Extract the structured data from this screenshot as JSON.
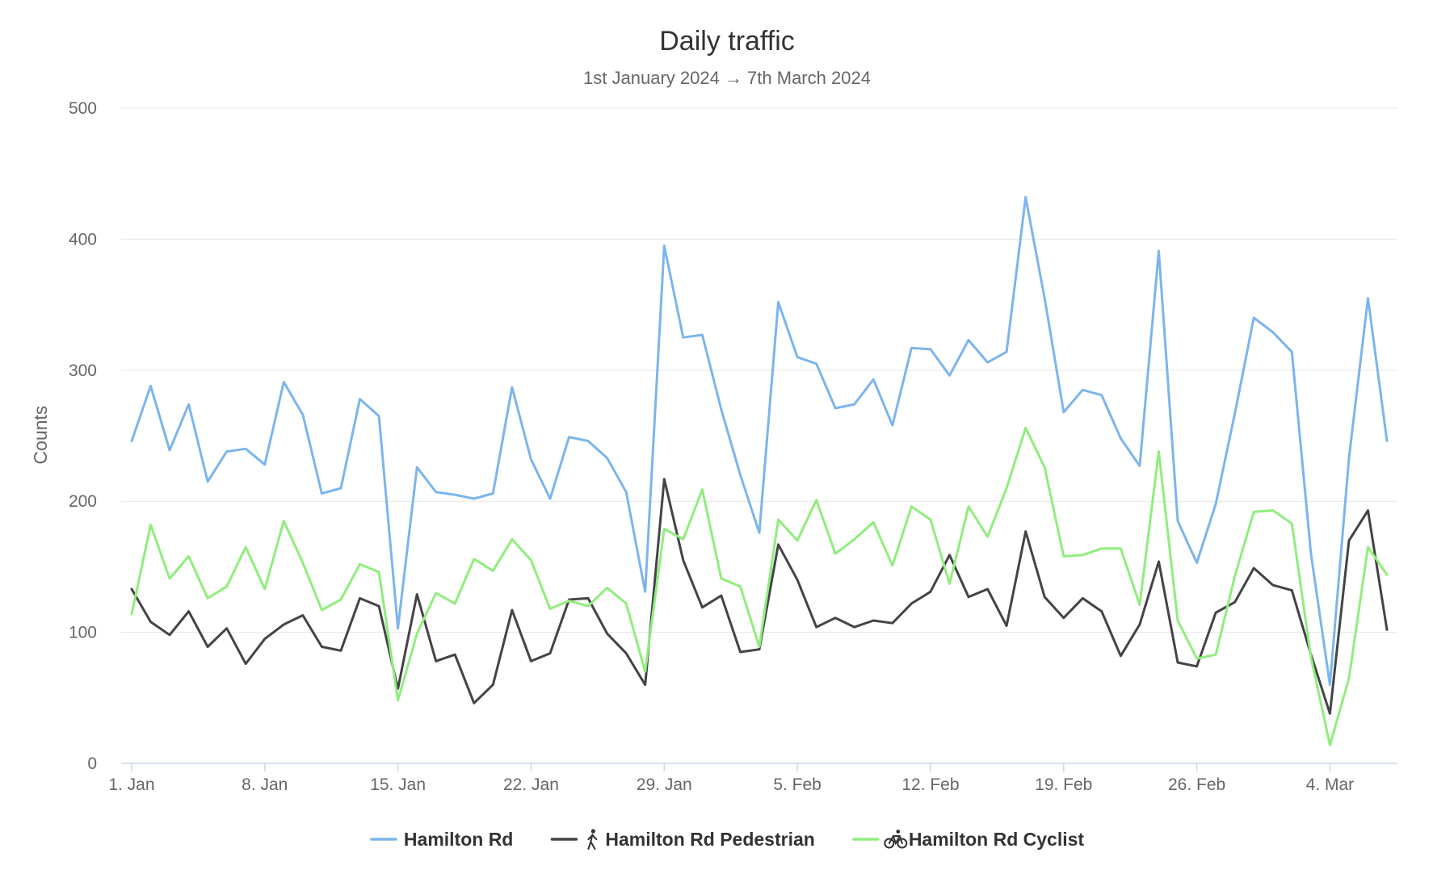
{
  "chart_data": {
    "type": "line",
    "title": "Daily traffic",
    "subtitle": "1st January 2024 → 7th March 2024",
    "ylabel": "Counts",
    "xlabel": "",
    "ylim": [
      0,
      500
    ],
    "yticks": [
      0,
      100,
      200,
      300,
      400,
      500
    ],
    "grid": true,
    "legend": "bottom-center",
    "x_start": "2024-01-01",
    "x_end": "2024-03-07",
    "x_ticks": [
      {
        "date": "2024-01-01",
        "label": "1. Jan"
      },
      {
        "date": "2024-01-08",
        "label": "8. Jan"
      },
      {
        "date": "2024-01-15",
        "label": "15. Jan"
      },
      {
        "date": "2024-01-22",
        "label": "22. Jan"
      },
      {
        "date": "2024-01-29",
        "label": "29. Jan"
      },
      {
        "date": "2024-02-05",
        "label": "5. Feb"
      },
      {
        "date": "2024-02-12",
        "label": "12. Feb"
      },
      {
        "date": "2024-02-19",
        "label": "19. Feb"
      },
      {
        "date": "2024-02-26",
        "label": "26. Feb"
      },
      {
        "date": "2024-03-04",
        "label": "4. Mar"
      }
    ],
    "series": [
      {
        "name": "Hamilton Rd",
        "color": "#7cb5ec",
        "icon": "",
        "values": [
          246,
          288,
          239,
          274,
          215,
          238,
          240,
          228,
          291,
          266,
          206,
          210,
          278,
          265,
          103,
          226,
          207,
          205,
          202,
          206,
          287,
          232,
          202,
          249,
          246,
          233,
          207,
          131,
          395,
          325,
          327,
          270,
          220,
          176,
          352,
          310,
          305,
          271,
          274,
          293,
          258,
          317,
          316,
          296,
          323,
          306,
          314,
          432,
          355,
          268,
          285,
          281,
          248,
          227,
          391,
          185,
          153,
          198,
          267,
          340,
          329,
          314,
          160,
          60,
          233,
          355,
          246
        ]
      },
      {
        "name": "Hamilton Rd Pedestrian",
        "color": "#434348",
        "icon": "pedestrian-icon",
        "values": [
          133,
          108,
          98,
          116,
          89,
          103,
          76,
          95,
          106,
          113,
          89,
          86,
          126,
          120,
          57,
          129,
          78,
          83,
          46,
          60,
          117,
          78,
          84,
          125,
          126,
          99,
          84,
          60,
          217,
          155,
          119,
          128,
          85,
          87,
          167,
          140,
          104,
          111,
          104,
          109,
          107,
          122,
          131,
          159,
          127,
          133,
          105,
          177,
          127,
          111,
          126,
          116,
          82,
          106,
          154,
          77,
          74,
          115,
          123,
          149,
          136,
          132,
          83,
          38,
          170,
          193,
          102
        ]
      },
      {
        "name": "Hamilton Rd Cyclist",
        "color": "#90ed7d",
        "icon": "bicycle-icon",
        "values": [
          114,
          182,
          141,
          158,
          126,
          135,
          165,
          133,
          185,
          153,
          117,
          125,
          152,
          146,
          48,
          99,
          130,
          122,
          156,
          147,
          171,
          155,
          118,
          124,
          120,
          134,
          122,
          70,
          179,
          171,
          209,
          141,
          135,
          89,
          186,
          170,
          201,
          160,
          171,
          184,
          151,
          196,
          186,
          137,
          196,
          173,
          210,
          256,
          226,
          158,
          159,
          164,
          164,
          121,
          238,
          109,
          80,
          83,
          143,
          192,
          193,
          183,
          81,
          14,
          65,
          165,
          144
        ]
      }
    ]
  }
}
